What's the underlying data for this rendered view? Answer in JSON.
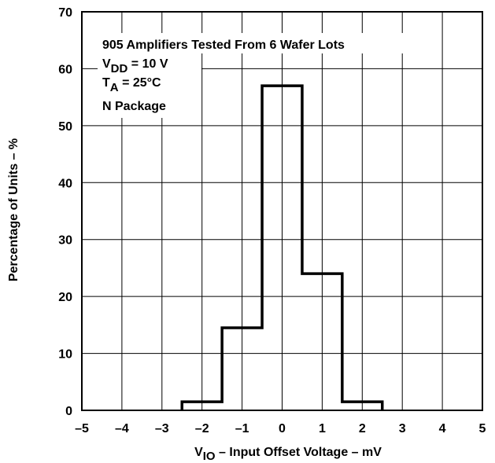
{
  "chart_data": {
    "type": "histogram",
    "title": "",
    "xlabel": {
      "main": "V",
      "subscript": "IO",
      "rest": " – Input Offset Voltage – mV"
    },
    "ylabel": "Percentage of Units – %",
    "xlim": [
      -5,
      5
    ],
    "ylim": [
      0,
      70
    ],
    "x_ticks": [
      -5,
      -4,
      -3,
      -2,
      -1,
      0,
      1,
      2,
      3,
      4,
      5
    ],
    "x_tick_labels": [
      "–5",
      "–4",
      "–3",
      "–2",
      "–1",
      "0",
      "1",
      "2",
      "3",
      "4",
      "5"
    ],
    "y_ticks": [
      0,
      10,
      20,
      30,
      40,
      50,
      60,
      70
    ],
    "y_tick_labels": [
      "0",
      "10",
      "20",
      "30",
      "40",
      "50",
      "60",
      "70"
    ],
    "grid": true,
    "bins": [
      {
        "x0": -2.5,
        "x1": -1.5,
        "value": 1.5
      },
      {
        "x0": -1.5,
        "x1": -0.5,
        "value": 14.5
      },
      {
        "x0": -0.5,
        "x1": 0.5,
        "value": 57
      },
      {
        "x0": 0.5,
        "x1": 1.5,
        "value": 24
      },
      {
        "x0": 1.5,
        "x1": 2.5,
        "value": 1.5
      }
    ],
    "annotations": {
      "line1": "905 Amplifiers Tested From 6 Wafer Lots",
      "line2": {
        "main": "V",
        "subscript": "DD",
        "rest": " = 10 V"
      },
      "line3": {
        "main": "T",
        "subscript": "A",
        "rest": " = 25°C"
      },
      "line4": "N Package"
    },
    "colors": {
      "line": "#000000",
      "grid": "#000000",
      "background": "#ffffff"
    }
  }
}
